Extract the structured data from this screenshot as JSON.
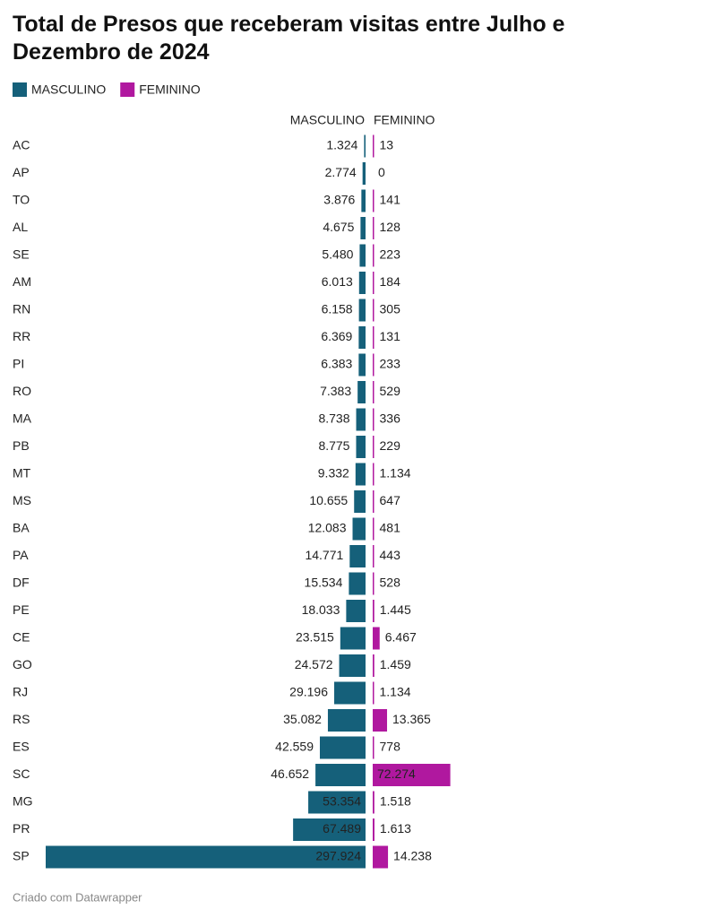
{
  "chart_data": {
    "type": "split-bar",
    "title": "Total de Presos que receberam visitas entre Julho e Dezembro de 2024",
    "categories": [
      "AC",
      "AP",
      "TO",
      "AL",
      "SE",
      "AM",
      "RN",
      "RR",
      "PI",
      "RO",
      "MA",
      "PB",
      "MT",
      "MS",
      "BA",
      "PA",
      "DF",
      "PE",
      "CE",
      "GO",
      "RJ",
      "RS",
      "ES",
      "SC",
      "MG",
      "PR",
      "SP"
    ],
    "series": [
      {
        "name": "MASCULINO",
        "color": "#15607a",
        "values": [
          1324,
          2774,
          3876,
          4675,
          5480,
          6013,
          6158,
          6369,
          6383,
          7383,
          8738,
          8775,
          9332,
          10655,
          12083,
          14771,
          15534,
          18033,
          23515,
          24572,
          29196,
          35082,
          42559,
          46652,
          53354,
          67489,
          297924
        ],
        "value_labels": [
          "1.324",
          "2.774",
          "3.876",
          "4.675",
          "5.480",
          "6.013",
          "6.158",
          "6.369",
          "6.383",
          "7.383",
          "8.738",
          "8.775",
          "9.332",
          "10.655",
          "12.083",
          "14.771",
          "15.534",
          "18.033",
          "23.515",
          "24.572",
          "29.196",
          "35.082",
          "42.559",
          "46.652",
          "53.354",
          "67.489",
          "297.924"
        ]
      },
      {
        "name": "FEMININO",
        "color": "#b0189f",
        "values": [
          13,
          0,
          141,
          128,
          223,
          184,
          305,
          131,
          233,
          529,
          336,
          229,
          1134,
          647,
          481,
          443,
          528,
          1445,
          6467,
          1459,
          1134,
          13365,
          778,
          72274,
          1518,
          1613,
          14238
        ],
        "value_labels": [
          "13",
          "0",
          "141",
          "128",
          "223",
          "184",
          "305",
          "131",
          "233",
          "529",
          "336",
          "229",
          "1.134",
          "647",
          "481",
          "443",
          "528",
          "1.445",
          "6.467",
          "1.459",
          "1.134",
          "13.365",
          "778",
          "72.274",
          "1.518",
          "1.613",
          "14.238"
        ]
      }
    ],
    "footer": "Criado com Datawrapper"
  }
}
